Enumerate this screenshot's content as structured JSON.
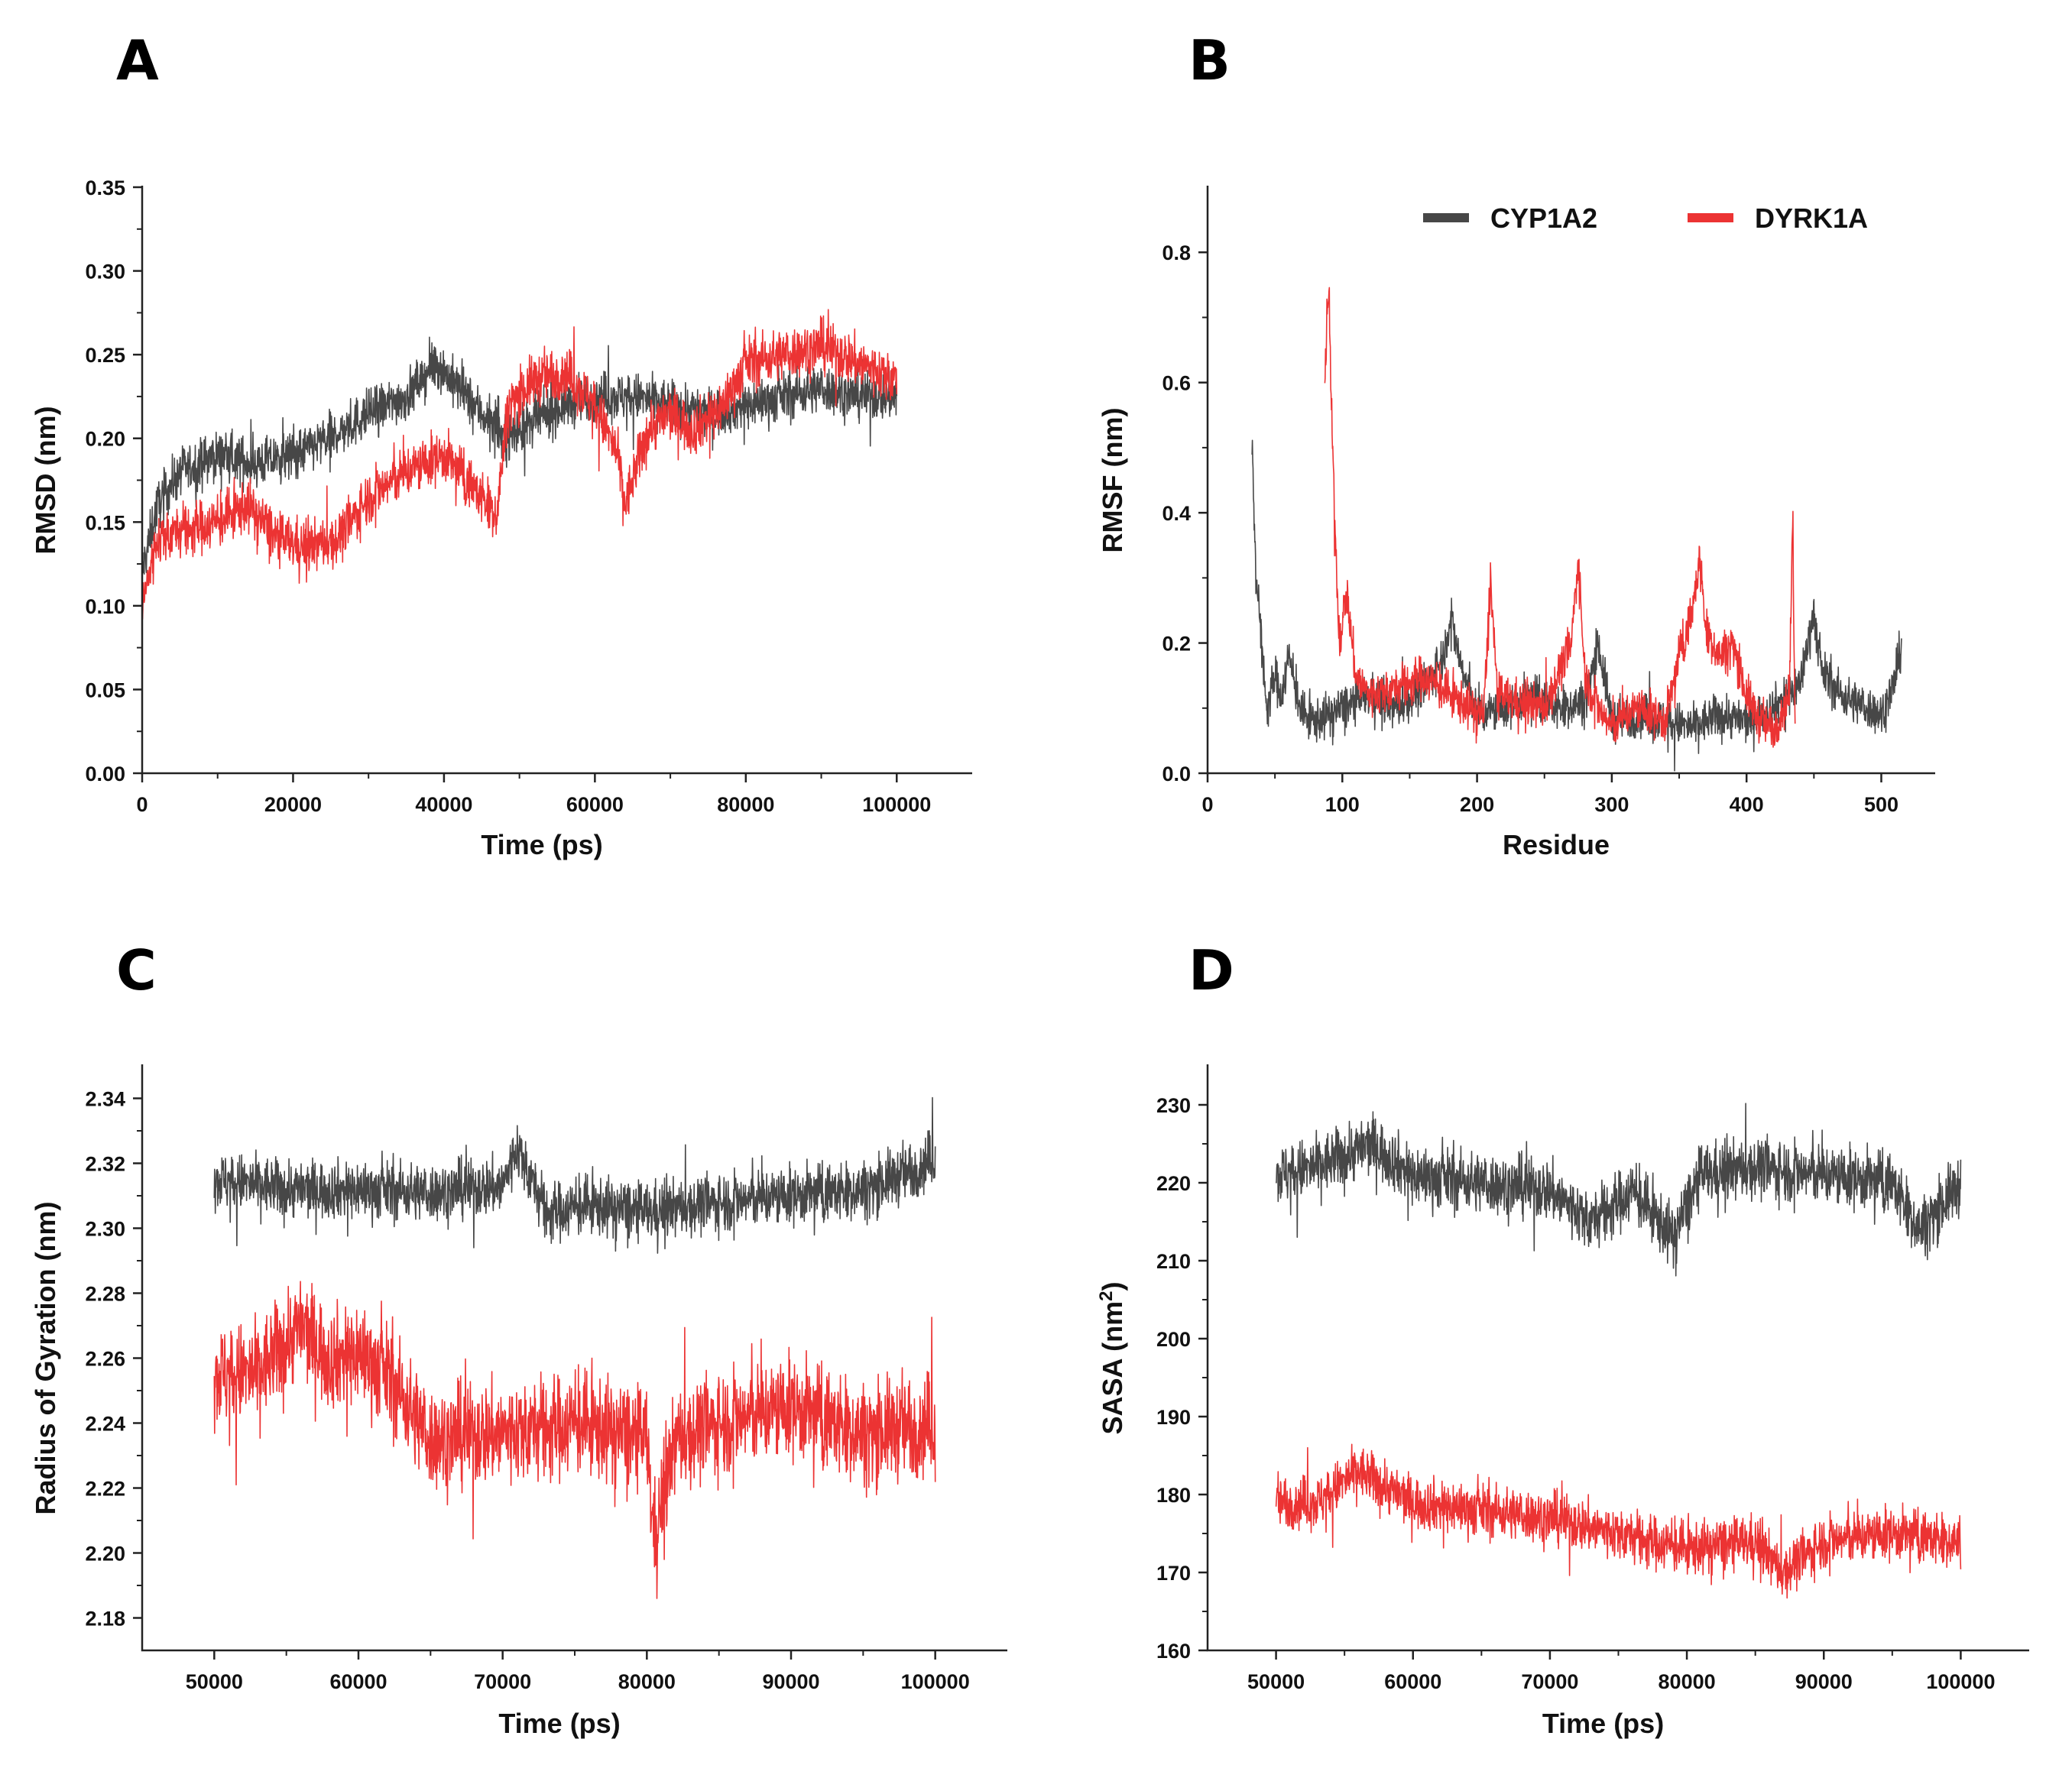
{
  "colors": {
    "cyp1a2": "#474747",
    "dyrk1a": "#ec3333"
  },
  "legend": {
    "items": [
      {
        "label": "CYP1A2",
        "color": "#474747"
      },
      {
        "label": "DYRK1A",
        "color": "#ec3333"
      }
    ]
  },
  "chart_data": [
    {
      "panel": "A",
      "type": "line",
      "xlabel": "Time (ps)",
      "ylabel": "RMSD (nm)",
      "xlim": [
        0,
        110000
      ],
      "ylim": [
        0,
        0.35
      ],
      "xticks": [
        0,
        20000,
        40000,
        60000,
        80000,
        100000
      ],
      "xtick_labels": [
        "0",
        "20000",
        "40000",
        "60000",
        "80000",
        "100000"
      ],
      "yticks": [
        0,
        0.05,
        0.1,
        0.15,
        0.2,
        0.25,
        0.3,
        0.35
      ],
      "ytick_labels": [
        "0.00",
        "0.05",
        "0.10",
        "0.15",
        "0.20",
        "0.25",
        "0.30",
        "0.35"
      ],
      "series": [
        {
          "name": "CYP1A2",
          "color": "#474747",
          "noise": 0.013,
          "x": [
            0,
            2000,
            5000,
            10000,
            15000,
            20000,
            25000,
            30000,
            35000,
            39000,
            42000,
            45000,
            48000,
            52000,
            56000,
            60000,
            65000,
            70000,
            75000,
            80000,
            85000,
            90000,
            95000,
            100000
          ],
          "y": [
            0.12,
            0.16,
            0.18,
            0.19,
            0.185,
            0.19,
            0.2,
            0.215,
            0.225,
            0.245,
            0.23,
            0.215,
            0.2,
            0.21,
            0.22,
            0.225,
            0.225,
            0.22,
            0.215,
            0.22,
            0.225,
            0.23,
            0.225,
            0.225
          ]
        },
        {
          "name": "DYRK1A",
          "color": "#ec3333",
          "noise": 0.014,
          "x": [
            0,
            2000,
            5000,
            10000,
            14000,
            18000,
            22000,
            26000,
            30000,
            35000,
            40000,
            44000,
            47000,
            48500,
            52000,
            56000,
            60000,
            63000,
            64000,
            67000,
            70000,
            73000,
            77000,
            80000,
            85000,
            90000,
            95000,
            100000
          ],
          "y": [
            0.1,
            0.14,
            0.145,
            0.15,
            0.16,
            0.14,
            0.135,
            0.14,
            0.165,
            0.18,
            0.19,
            0.17,
            0.155,
            0.22,
            0.235,
            0.24,
            0.22,
            0.19,
            0.16,
            0.205,
            0.215,
            0.205,
            0.22,
            0.245,
            0.25,
            0.255,
            0.245,
            0.235
          ]
        }
      ]
    },
    {
      "panel": "B",
      "type": "line",
      "xlabel": "Residue",
      "ylabel": "RMSF (nm)",
      "xlim": [
        0,
        540
      ],
      "ylim": [
        0,
        0.9
      ],
      "xticks": [
        0,
        100,
        200,
        300,
        400,
        500
      ],
      "xtick_labels": [
        "0",
        "100",
        "200",
        "300",
        "400",
        "500"
      ],
      "yticks": [
        0,
        0.2,
        0.4,
        0.6,
        0.8
      ],
      "ytick_labels": [
        "0.0",
        "0.2",
        "0.4",
        "0.6",
        "0.8"
      ],
      "series": [
        {
          "name": "CYP1A2",
          "color": "#474747",
          "noise": 0.03,
          "x": [
            33,
            36,
            40,
            44,
            50,
            55,
            60,
            70,
            80,
            90,
            100,
            120,
            140,
            160,
            175,
            180,
            190,
            200,
            220,
            240,
            260,
            280,
            290,
            300,
            320,
            340,
            360,
            380,
            400,
            420,
            440,
            450,
            455,
            470,
            490,
            500,
            510,
            515
          ],
          "y": [
            0.5,
            0.3,
            0.2,
            0.1,
            0.15,
            0.12,
            0.18,
            0.09,
            0.08,
            0.09,
            0.1,
            0.12,
            0.1,
            0.13,
            0.18,
            0.24,
            0.15,
            0.09,
            0.1,
            0.12,
            0.1,
            0.11,
            0.2,
            0.08,
            0.09,
            0.08,
            0.07,
            0.09,
            0.08,
            0.1,
            0.14,
            0.25,
            0.16,
            0.12,
            0.1,
            0.09,
            0.14,
            0.2
          ]
        },
        {
          "name": "DYRK1A",
          "color": "#ec3333",
          "noise": 0.03,
          "x": [
            87,
            90,
            92,
            95,
            98,
            103,
            110,
            120,
            140,
            160,
            180,
            195,
            205,
            210,
            215,
            230,
            250,
            270,
            275,
            280,
            290,
            300,
            310,
            320,
            340,
            350,
            360,
            365,
            370,
            380,
            390,
            400,
            410,
            420,
            425,
            432,
            434,
            436
          ],
          "y": [
            0.6,
            0.75,
            0.55,
            0.35,
            0.2,
            0.28,
            0.15,
            0.12,
            0.13,
            0.15,
            0.12,
            0.1,
            0.09,
            0.3,
            0.12,
            0.11,
            0.1,
            0.2,
            0.33,
            0.15,
            0.1,
            0.07,
            0.09,
            0.1,
            0.08,
            0.18,
            0.25,
            0.33,
            0.22,
            0.18,
            0.2,
            0.12,
            0.08,
            0.07,
            0.09,
            0.12,
            0.4,
            0.1
          ]
        }
      ]
    },
    {
      "panel": "C",
      "type": "line",
      "xlabel": "Time (ps)",
      "ylabel": "Radius of Gyration (nm)",
      "xlim": [
        45000,
        105000
      ],
      "ylim": [
        2.17,
        2.35
      ],
      "xticks": [
        50000,
        60000,
        70000,
        80000,
        90000,
        100000
      ],
      "xtick_labels": [
        "50000",
        "60000",
        "70000",
        "80000",
        "90000",
        "100000"
      ],
      "yticks": [
        2.18,
        2.2,
        2.22,
        2.24,
        2.26,
        2.28,
        2.3,
        2.32,
        2.34
      ],
      "ytick_labels": [
        "2.18",
        "2.20",
        "2.22",
        "2.24",
        "2.26",
        "2.28",
        "2.30",
        "2.32",
        "2.34"
      ],
      "series": [
        {
          "name": "CYP1A2",
          "color": "#474747",
          "noise": 0.008,
          "x": [
            50000,
            55000,
            60000,
            65000,
            70000,
            71000,
            73000,
            76000,
            80000,
            85000,
            90000,
            95000,
            98000,
            100000
          ],
          "y": [
            2.315,
            2.312,
            2.312,
            2.311,
            2.313,
            2.325,
            2.305,
            2.307,
            2.305,
            2.308,
            2.31,
            2.312,
            2.317,
            2.322
          ]
        },
        {
          "name": "DYRK1A",
          "color": "#ec3333",
          "noise": 0.014,
          "x": [
            50000,
            53000,
            56000,
            58000,
            60000,
            62000,
            65000,
            70000,
            75000,
            80000,
            80500,
            82000,
            85000,
            90000,
            95000,
            100000
          ],
          "y": [
            2.255,
            2.255,
            2.27,
            2.26,
            2.262,
            2.255,
            2.235,
            2.237,
            2.24,
            2.235,
            2.205,
            2.235,
            2.24,
            2.245,
            2.237,
            2.24
          ]
        }
      ]
    },
    {
      "panel": "D",
      "type": "line",
      "xlabel": "Time (ps)",
      "ylabel": "SASA (nm²)",
      "xlim": [
        45000,
        105000
      ],
      "ylim": [
        160,
        235
      ],
      "xticks": [
        50000,
        60000,
        70000,
        80000,
        90000,
        100000
      ],
      "xtick_labels": [
        "50000",
        "60000",
        "70000",
        "80000",
        "90000",
        "100000"
      ],
      "yticks": [
        160,
        170,
        180,
        190,
        200,
        210,
        220,
        230
      ],
      "ytick_labels": [
        "160",
        "170",
        "180",
        "190",
        "200",
        "210",
        "220",
        "230"
      ],
      "series": [
        {
          "name": "CYP1A2",
          "color": "#474747",
          "noise": 3.5,
          "x": [
            50000,
            53000,
            57000,
            60000,
            65000,
            70000,
            73000,
            76000,
            79000,
            81000,
            85000,
            90000,
            95000,
            97000,
            100000
          ],
          "y": [
            221,
            222,
            225,
            221,
            220,
            219,
            215,
            219,
            213,
            221,
            222,
            221,
            220,
            214,
            220
          ]
        },
        {
          "name": "DYRK1A",
          "color": "#ec3333",
          "noise": 3.0,
          "x": [
            50000,
            53000,
            56000,
            60000,
            65000,
            70000,
            75000,
            80000,
            85000,
            87000,
            90000,
            95000,
            100000
          ],
          "y": [
            179,
            179,
            183,
            179,
            178,
            177,
            175,
            173,
            174,
            170,
            174,
            175,
            174
          ]
        }
      ]
    }
  ]
}
